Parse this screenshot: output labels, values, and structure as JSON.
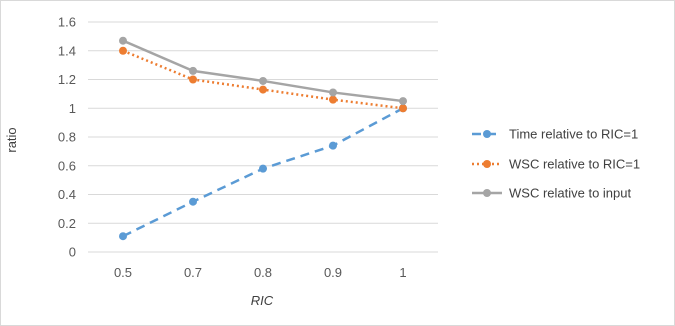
{
  "chart_data": {
    "type": "line",
    "title": "",
    "xlabel": "RIC",
    "ylabel": "ratio",
    "categories": [
      "0.5",
      "0.7",
      "0.8",
      "0.9",
      "1"
    ],
    "ylim": [
      0,
      1.6
    ],
    "yticks": [
      "0",
      "0.2",
      "0.4",
      "0.6",
      "0.8",
      "1",
      "1.2",
      "1.4",
      "1.6"
    ],
    "grid": true,
    "legend_position": "right",
    "series": [
      {
        "name": "Time relative to RIC=1",
        "values": [
          0.11,
          0.35,
          0.58,
          0.74,
          1.0
        ],
        "color": "#5b9bd5",
        "style": "dashed"
      },
      {
        "name": "WSC relative to RIC=1",
        "values": [
          1.4,
          1.2,
          1.13,
          1.06,
          1.0
        ],
        "color": "#ed7d31",
        "style": "dotted"
      },
      {
        "name": "WSC relative to input",
        "values": [
          1.47,
          1.26,
          1.19,
          1.11,
          1.05
        ],
        "color": "#a5a5a5",
        "style": "solid"
      }
    ]
  }
}
